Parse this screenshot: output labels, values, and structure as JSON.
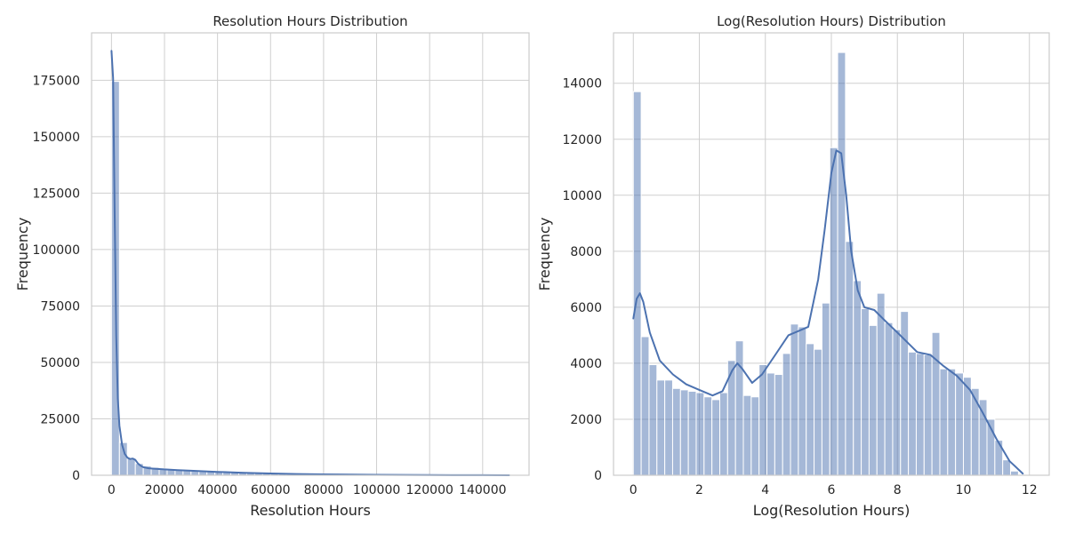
{
  "chart_data": [
    {
      "type": "bar",
      "title": "Resolution Hours Distribution",
      "xlabel": "Resolution Hours",
      "ylabel": "Frequency",
      "xlim": [
        -7500,
        157500
      ],
      "ylim": [
        0,
        196000
      ],
      "xticks": [
        0,
        20000,
        40000,
        60000,
        80000,
        100000,
        120000,
        140000
      ],
      "yticks": [
        0,
        25000,
        50000,
        75000,
        100000,
        125000,
        150000,
        175000
      ],
      "grid": true,
      "bin_start": 0,
      "bin_width": 3000,
      "values": [
        174500,
        14500,
        7600,
        5200,
        4100,
        3500,
        3000,
        2700,
        2500,
        2300,
        2100,
        1900,
        1700,
        1550,
        1400,
        1300,
        1200,
        1100,
        1000,
        900,
        820,
        750,
        680,
        620,
        560,
        500,
        460,
        420,
        380,
        340,
        300,
        270,
        240,
        210,
        190,
        170,
        150,
        130,
        115,
        100,
        90,
        80,
        70,
        60,
        50,
        45,
        40,
        35,
        30,
        25
      ],
      "kde": {
        "x": [
          0,
          600,
          1200,
          1800,
          2400,
          3000,
          4000,
          5000,
          6000,
          7000,
          8000,
          9000,
          10000,
          11000,
          12000,
          14000,
          16000,
          20000,
          25000,
          30000,
          40000,
          50000,
          60000,
          70000,
          80000,
          100000,
          120000,
          140000,
          150000
        ],
        "y": [
          188000,
          176000,
          118000,
          62000,
          34000,
          22000,
          13500,
          9500,
          7800,
          7200,
          7400,
          6800,
          5200,
          4200,
          3600,
          3100,
          2900,
          2600,
          2300,
          2000,
          1500,
          1100,
          800,
          550,
          380,
          180,
          80,
          30,
          10
        ]
      }
    },
    {
      "type": "bar",
      "title": "Log(Resolution Hours) Distribution",
      "xlabel": "Log(Resolution Hours)",
      "ylabel": "Frequency",
      "xlim": [
        -0.6,
        12.6
      ],
      "ylim": [
        0,
        15800
      ],
      "xticks": [
        0,
        2,
        4,
        6,
        8,
        10,
        12
      ],
      "yticks": [
        0,
        2000,
        4000,
        6000,
        8000,
        10000,
        12000,
        14000
      ],
      "grid": true,
      "bin_start": 0,
      "bin_width": 0.2381,
      "values": [
        13700,
        4950,
        3950,
        3400,
        3400,
        3100,
        3050,
        3000,
        2950,
        2800,
        2700,
        2950,
        4100,
        4800,
        2850,
        2800,
        3950,
        3650,
        3600,
        4350,
        5400,
        5300,
        4700,
        4500,
        6150,
        11700,
        15100,
        8350,
        6950,
        5950,
        5350,
        6500,
        5450,
        5200,
        5850,
        4400,
        4350,
        4300,
        5100,
        3800,
        3800,
        3650,
        3500,
        3100,
        2700,
        2000,
        1250,
        550,
        150,
        0
      ],
      "kde": {
        "x": [
          0,
          0.1,
          0.2,
          0.3,
          0.5,
          0.8,
          1.2,
          1.6,
          2.0,
          2.4,
          2.7,
          3.0,
          3.15,
          3.3,
          3.6,
          3.9,
          4.3,
          4.7,
          5.0,
          5.3,
          5.6,
          5.8,
          6.0,
          6.15,
          6.3,
          6.45,
          6.6,
          6.8,
          7.0,
          7.3,
          7.6,
          8.0,
          8.3,
          8.6,
          9.0,
          9.4,
          9.8,
          10.2,
          10.6,
          11.0,
          11.4,
          11.8
        ],
        "y": [
          5600,
          6300,
          6500,
          6200,
          5100,
          4100,
          3600,
          3250,
          3050,
          2850,
          3000,
          3750,
          4000,
          3800,
          3300,
          3600,
          4300,
          5000,
          5150,
          5300,
          7000,
          8800,
          10800,
          11600,
          11500,
          10000,
          8000,
          6600,
          6000,
          5900,
          5550,
          5100,
          4750,
          4400,
          4300,
          3900,
          3550,
          3050,
          2200,
          1300,
          500,
          60
        ]
      }
    }
  ]
}
